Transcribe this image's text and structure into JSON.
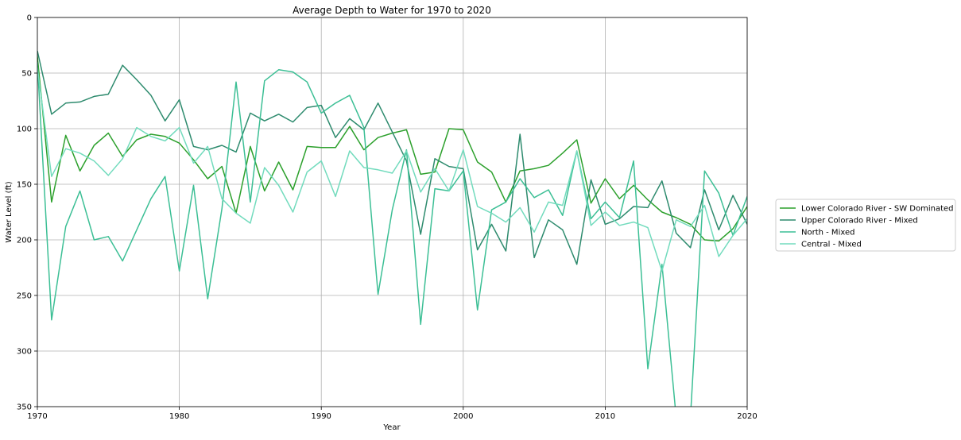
{
  "chart_data": {
    "type": "line",
    "title": "Average Depth to Water for 1970 to 2020",
    "xlabel": "Year",
    "ylabel": "Water Level (ft)",
    "xlim": [
      1970,
      2020
    ],
    "ylim": [
      0,
      350
    ],
    "y_inverted": true,
    "grid": true,
    "legend_position": "right",
    "x_ticks": [
      "1970",
      "1980",
      "1990",
      "2000",
      "2010",
      "2020"
    ],
    "y_ticks": [
      "0",
      "50",
      "100",
      "150",
      "200",
      "250",
      "300",
      "350"
    ],
    "x": [
      1970,
      1971,
      1972,
      1973,
      1974,
      1975,
      1976,
      1977,
      1978,
      1979,
      1980,
      1981,
      1982,
      1983,
      1984,
      1985,
      1986,
      1987,
      1988,
      1989,
      1990,
      1991,
      1992,
      1993,
      1994,
      1995,
      1996,
      1997,
      1998,
      1999,
      2000,
      2001,
      2002,
      2003,
      2004,
      2005,
      2006,
      2007,
      2008,
      2009,
      2010,
      2011,
      2012,
      2013,
      2014,
      2015,
      2016,
      2017,
      2018,
      2019,
      2020
    ],
    "series": [
      {
        "name": "Lower Colorado River - SW Dominated",
        "color": "#2ca02c",
        "values": [
          35,
          166,
          106,
          138,
          115,
          104,
          125,
          110,
          105,
          107,
          113,
          128,
          145,
          134,
          176,
          116,
          156,
          130,
          155,
          116,
          117,
          117,
          98,
          119,
          108,
          104,
          101,
          141,
          139,
          100,
          101,
          130,
          139,
          166,
          138,
          136,
          133,
          122,
          110,
          167,
          145,
          163,
          151,
          164,
          175,
          180,
          186,
          200,
          201,
          190,
          170
        ]
      },
      {
        "name": "Upper Colorado River - Mixed",
        "color": "#2e8b6e",
        "values": [
          30,
          87,
          77,
          76,
          71,
          69,
          43,
          56,
          70,
          93,
          74,
          116,
          119,
          115,
          121,
          86,
          93,
          87,
          94,
          81,
          79,
          108,
          91,
          101,
          77,
          103,
          129,
          195,
          127,
          134,
          136,
          209,
          186,
          210,
          105,
          216,
          182,
          191,
          222,
          146,
          186,
          181,
          170,
          171,
          147,
          194,
          207,
          155,
          191,
          160,
          186
        ]
      },
      {
        "name": "North - Mixed",
        "color": "#3cbf95",
        "values": [
          40,
          272,
          188,
          156,
          200,
          197,
          219,
          191,
          163,
          143,
          228,
          151,
          253,
          172,
          58,
          166,
          57,
          47,
          49,
          58,
          86,
          77,
          70,
          99,
          249,
          173,
          119,
          276,
          154,
          156,
          138,
          263,
          173,
          166,
          145,
          162,
          155,
          178,
          120,
          181,
          166,
          180,
          129,
          316,
          222,
          360,
          360,
          138,
          158,
          196,
          161
        ]
      },
      {
        "name": "Central - Mixed",
        "color": "#72dbbd",
        "values": [
          45,
          143,
          118,
          122,
          129,
          142,
          127,
          99,
          107,
          111,
          99,
          131,
          116,
          163,
          176,
          185,
          135,
          151,
          175,
          139,
          129,
          161,
          120,
          135,
          137,
          140,
          120,
          157,
          136,
          156,
          119,
          170,
          176,
          184,
          171,
          193,
          166,
          169,
          120,
          187,
          175,
          187,
          184,
          189,
          228,
          182,
          188,
          169,
          215,
          196,
          181
        ]
      }
    ]
  }
}
